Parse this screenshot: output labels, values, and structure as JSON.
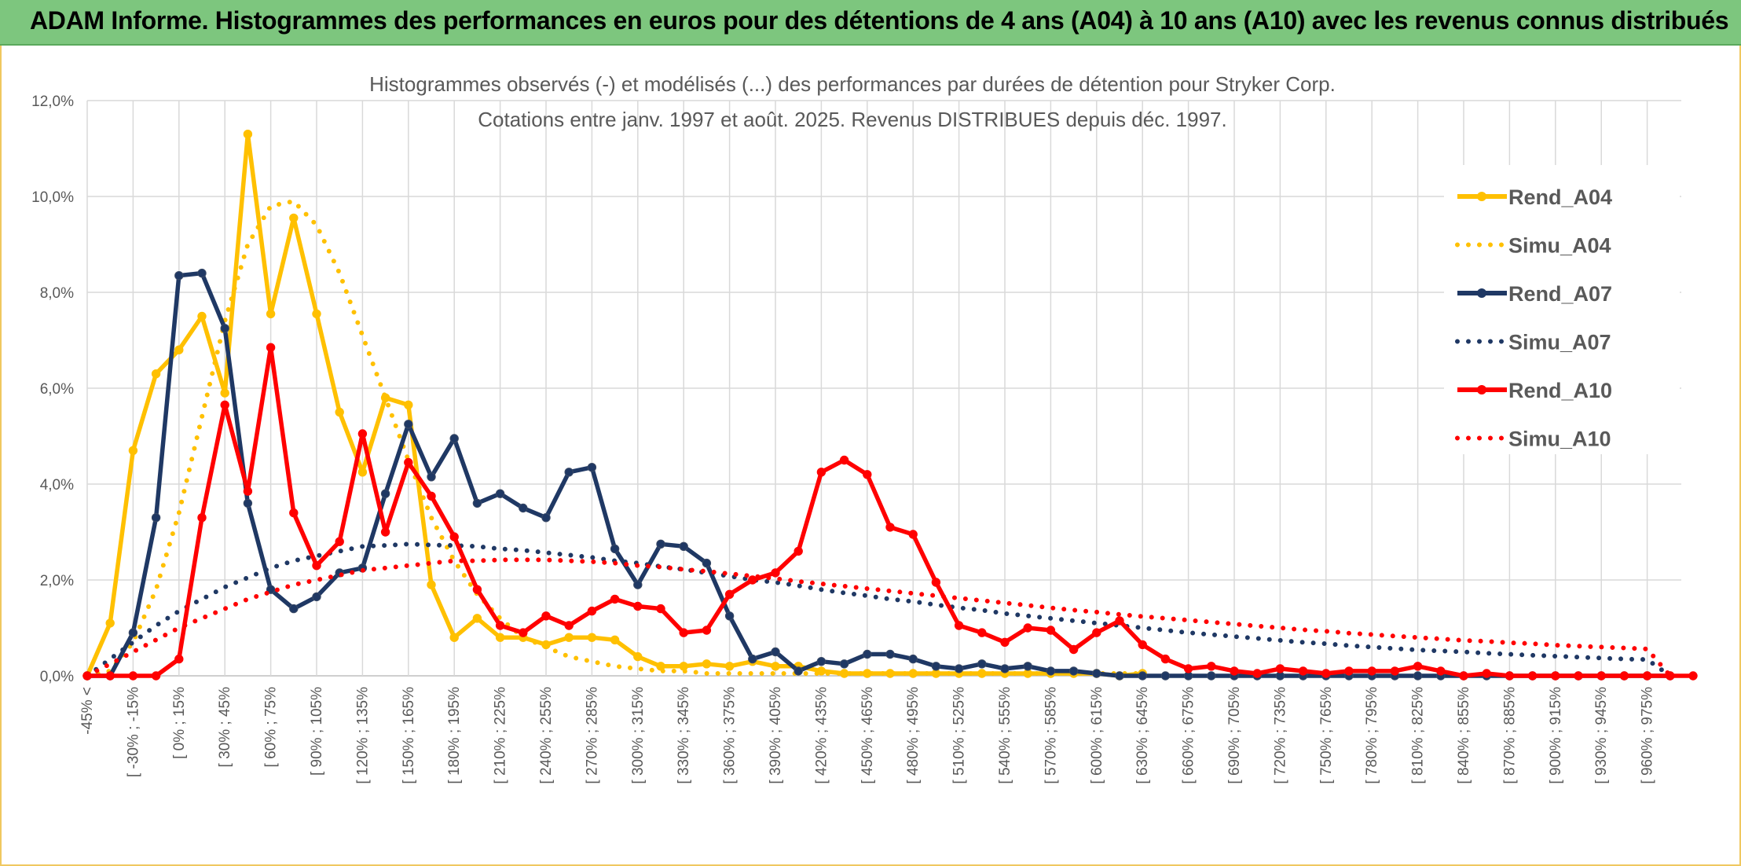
{
  "banner": {
    "title": "ADAM Informe. Histogrammes des performances en euros pour des détentions de 4 ans (A04) à 10 ans (A10) avec les revenus connus distribués"
  },
  "colors": {
    "banner_bg": "#7DC67E",
    "A04": "#FFC000",
    "A07": "#1F3864",
    "A10": "#FF0000",
    "grid": "#D9D9D9",
    "text": "#595959"
  },
  "chart_data": {
    "type": "line",
    "title": "Histogrammes observés (-) et modélisés (...) des performances par durées de détention pour Stryker Corp.",
    "subtitle": "Cotations entre janv. 1997 et août. 2025. Revenus DISTRIBUES depuis déc. 1997.",
    "xlabel": "",
    "ylabel": "",
    "ylim": [
      0,
      12
    ],
    "y_unit": "%",
    "y_ticks": [
      "0,0%",
      "2,0%",
      "4,0%",
      "6,0%",
      "8,0%",
      "10,0%",
      "12,0%"
    ],
    "grid": true,
    "legend_position": "right",
    "x_tick_labels": [
      "-45% <",
      "[ -30% ; -15%",
      "[ 0% ; 15%",
      "[ 30% ; 45%",
      "[ 60% ; 75%",
      "[ 90% ; 105%",
      "[ 120% ; 135%",
      "[ 150% ; 165%",
      "[ 180% ; 195%",
      "[ 210% ; 225%",
      "[ 240% ; 255%",
      "[ 270% ; 285%",
      "[ 300% ; 315%",
      "[ 330% ; 345%",
      "[ 360% ; 375%",
      "[ 390% ; 405%",
      "[ 420% ; 435%",
      "[ 450% ; 465%",
      "[ 480% ; 495%",
      "[ 510% ; 525%",
      "[ 540% ; 555%",
      "[ 570% ; 585%",
      "[ 600% ; 615%",
      "[ 630% ; 645%",
      "[ 660% ; 675%",
      "[ 690% ; 705%",
      "[ 720% ; 735%",
      "[ 750% ; 765%",
      "[ 780% ; 795%",
      "[ 810% ; 825%",
      "[ 840% ; 855%",
      "[ 870% ; 885%",
      "[ 900% ; 915%",
      "[ 930% ; 945%",
      "[ 960% ; 975%"
    ],
    "series": [
      {
        "name": "Rend_A04",
        "style": "solid",
        "color": "#FFC000",
        "values": [
          0.0,
          1.1,
          4.7,
          6.3,
          6.8,
          7.5,
          5.9,
          11.3,
          7.55,
          9.55,
          7.55,
          5.5,
          4.25,
          5.8,
          5.65,
          1.9,
          0.8,
          1.2,
          0.8,
          0.8,
          0.65,
          0.8,
          0.8,
          0.75,
          0.4,
          0.2,
          0.2,
          0.25,
          0.2,
          0.3,
          0.2,
          0.2,
          0.1,
          0.05,
          0.05,
          0.05,
          0.05,
          0.05,
          0.05,
          0.05,
          0.05,
          0.05,
          0.05,
          0.05,
          0.05,
          0.0,
          0.05
        ]
      },
      {
        "name": "Simu_A04",
        "style": "dotted",
        "color": "#FFC000",
        "values": [
          0.0,
          0.1,
          0.7,
          1.8,
          3.4,
          5.4,
          7.4,
          9.0,
          9.8,
          9.9,
          9.4,
          8.4,
          7.1,
          5.8,
          4.5,
          3.3,
          2.4,
          1.7,
          1.2,
          0.8,
          0.6,
          0.4,
          0.3,
          0.2,
          0.15,
          0.1,
          0.1,
          0.05,
          0.05,
          0.05,
          0.05,
          0.05,
          0.05,
          0.05,
          0.05,
          0.05,
          0.05,
          0.05,
          0.05,
          0.05,
          0.05,
          0.05,
          0.05,
          0.05,
          0.05,
          0.05,
          0.05
        ]
      },
      {
        "name": "Rend_A07",
        "style": "solid",
        "color": "#1F3864",
        "values": [
          0.0,
          0.0,
          0.9,
          3.3,
          8.35,
          8.4,
          7.25,
          3.6,
          1.8,
          1.4,
          1.65,
          2.15,
          2.25,
          3.8,
          5.25,
          4.15,
          4.95,
          3.6,
          3.8,
          3.5,
          3.3,
          4.25,
          4.35,
          2.65,
          1.9,
          2.75,
          2.7,
          2.35,
          1.25,
          0.35,
          0.5,
          0.1,
          0.3,
          0.25,
          0.45,
          0.45,
          0.35,
          0.2,
          0.15,
          0.25,
          0.15,
          0.2,
          0.1,
          0.1,
          0.05,
          0.0,
          0.0,
          0.0,
          0.0,
          0.0,
          0.0,
          0.0,
          0.0,
          0.0,
          0.0,
          0.0,
          0.0,
          0.0,
          0.0,
          0.0,
          0.0,
          0.0,
          0.0,
          0.0,
          0.0,
          0.0,
          0.0,
          0.0,
          0.0,
          0.0
        ]
      },
      {
        "name": "Simu_A07",
        "style": "dotted",
        "color": "#1F3864",
        "values": [
          0.0,
          0.35,
          0.7,
          1.05,
          1.35,
          1.6,
          1.85,
          2.05,
          2.25,
          2.4,
          2.5,
          2.6,
          2.7,
          2.72,
          2.75,
          2.73,
          2.72,
          2.7,
          2.65,
          2.62,
          2.57,
          2.52,
          2.47,
          2.4,
          2.35,
          2.28,
          2.22,
          2.15,
          2.08,
          2.0,
          1.95,
          1.88,
          1.8,
          1.73,
          1.67,
          1.6,
          1.55,
          1.48,
          1.42,
          1.37,
          1.3,
          1.25,
          1.2,
          1.15,
          1.1,
          1.05,
          1.0,
          0.95,
          0.9,
          0.86,
          0.82,
          0.78,
          0.74,
          0.7,
          0.67,
          0.63,
          0.6,
          0.57,
          0.54,
          0.52,
          0.5,
          0.47,
          0.45,
          0.43,
          0.41,
          0.39,
          0.37,
          0.35,
          0.34,
          0.0
        ]
      },
      {
        "name": "Rend_A10",
        "style": "solid",
        "color": "#FF0000",
        "values": [
          0.0,
          0.0,
          0.0,
          0.0,
          0.35,
          3.3,
          5.65,
          3.85,
          6.85,
          3.4,
          2.3,
          2.8,
          5.05,
          3.0,
          4.45,
          3.75,
          2.9,
          1.8,
          1.05,
          0.9,
          1.25,
          1.05,
          1.35,
          1.6,
          1.45,
          1.4,
          0.9,
          0.95,
          1.7,
          2.0,
          2.15,
          2.6,
          4.25,
          4.5,
          4.2,
          3.1,
          2.95,
          1.95,
          1.05,
          0.9,
          0.7,
          1.0,
          0.95,
          0.55,
          0.9,
          1.15,
          0.65,
          0.35,
          0.15,
          0.2,
          0.1,
          0.05,
          0.15,
          0.1,
          0.05,
          0.1,
          0.1,
          0.1,
          0.2,
          0.1,
          0.0,
          0.05,
          0.0,
          0.0,
          0.0,
          0.0,
          0.0,
          0.0,
          0.0,
          0.0,
          0.0
        ]
      },
      {
        "name": "Simu_A10",
        "style": "dotted",
        "color": "#FF0000",
        "values": [
          0.0,
          0.25,
          0.5,
          0.75,
          1.0,
          1.2,
          1.4,
          1.6,
          1.75,
          1.9,
          2.0,
          2.1,
          2.2,
          2.25,
          2.3,
          2.35,
          2.4,
          2.4,
          2.42,
          2.42,
          2.42,
          2.4,
          2.38,
          2.35,
          2.3,
          2.27,
          2.22,
          2.18,
          2.13,
          2.08,
          2.03,
          1.97,
          1.92,
          1.87,
          1.82,
          1.77,
          1.72,
          1.67,
          1.62,
          1.57,
          1.52,
          1.47,
          1.42,
          1.37,
          1.33,
          1.28,
          1.24,
          1.2,
          1.16,
          1.12,
          1.08,
          1.04,
          1.0,
          0.96,
          0.93,
          0.89,
          0.86,
          0.83,
          0.8,
          0.77,
          0.74,
          0.72,
          0.69,
          0.67,
          0.64,
          0.62,
          0.6,
          0.58,
          0.56,
          0.0
        ]
      }
    ]
  }
}
